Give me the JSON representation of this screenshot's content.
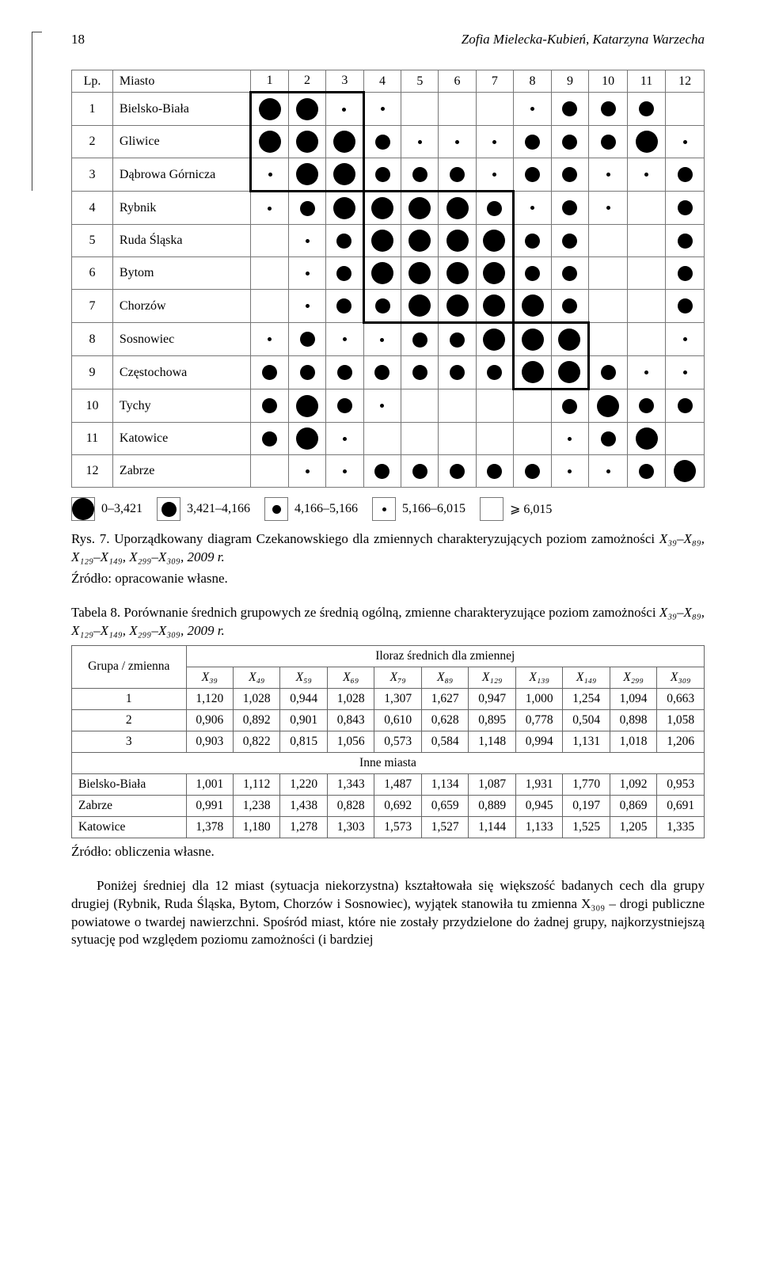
{
  "page_number": "18",
  "authors": "Zofia Mielecka-Kubień, Katarzyna Warzecha",
  "czek": {
    "lp_label": "Lp.",
    "miasto_label": "Miasto",
    "col_nums": [
      "1",
      "2",
      "3",
      "4",
      "5",
      "6",
      "7",
      "8",
      "9",
      "10",
      "11",
      "12"
    ],
    "rows": [
      {
        "n": "1",
        "city": "Bielsko-Biała",
        "cells": [
          1,
          1,
          4,
          4,
          0,
          0,
          0,
          4,
          2,
          2,
          2,
          0
        ]
      },
      {
        "n": "2",
        "city": "Gliwice",
        "cells": [
          1,
          1,
          1,
          2,
          4,
          4,
          4,
          2,
          2,
          2,
          1,
          4
        ]
      },
      {
        "n": "3",
        "city": "Dąbrowa Górnicza",
        "cells": [
          4,
          1,
          1,
          2,
          2,
          2,
          4,
          2,
          2,
          4,
          4,
          2
        ]
      },
      {
        "n": "4",
        "city": "Rybnik",
        "cells": [
          4,
          2,
          1,
          1,
          1,
          1,
          2,
          4,
          2,
          4,
          0,
          2
        ]
      },
      {
        "n": "5",
        "city": "Ruda Śląska",
        "cells": [
          0,
          4,
          2,
          1,
          1,
          1,
          1,
          2,
          2,
          0,
          0,
          2
        ]
      },
      {
        "n": "6",
        "city": "Bytom",
        "cells": [
          0,
          4,
          2,
          1,
          1,
          1,
          1,
          2,
          2,
          0,
          0,
          2
        ]
      },
      {
        "n": "7",
        "city": "Chorzów",
        "cells": [
          0,
          4,
          2,
          2,
          1,
          1,
          1,
          1,
          2,
          0,
          0,
          2
        ]
      },
      {
        "n": "8",
        "city": "Sosnowiec",
        "cells": [
          4,
          2,
          4,
          4,
          2,
          2,
          1,
          1,
          1,
          0,
          0,
          4
        ]
      },
      {
        "n": "9",
        "city": "Częstochowa",
        "cells": [
          2,
          2,
          2,
          2,
          2,
          2,
          2,
          1,
          1,
          2,
          4,
          4
        ]
      },
      {
        "n": "10",
        "city": "Tychy",
        "cells": [
          2,
          1,
          2,
          4,
          0,
          0,
          0,
          0,
          2,
          1,
          2,
          2
        ]
      },
      {
        "n": "11",
        "city": "Katowice",
        "cells": [
          2,
          1,
          4,
          0,
          0,
          0,
          0,
          0,
          4,
          2,
          1,
          0
        ]
      },
      {
        "n": "12",
        "city": "Zabrze",
        "cells": [
          0,
          4,
          4,
          2,
          2,
          2,
          2,
          2,
          4,
          4,
          2,
          1
        ]
      }
    ],
    "groups": [
      {
        "r0": 1,
        "r1": 3,
        "c0": 1,
        "c1": 3
      },
      {
        "r0": 4,
        "r1": 7,
        "c0": 4,
        "c1": 7
      },
      {
        "r0": 8,
        "r1": 9,
        "c0": 8,
        "c1": 9
      }
    ],
    "legend": [
      {
        "size": 1,
        "label": "0–3,421"
      },
      {
        "size": 2,
        "label": "3,421–4,166"
      },
      {
        "size": 3,
        "label": "4,166–5,166"
      },
      {
        "size": 4,
        "label": "5,166–6,015"
      },
      {
        "size": 0,
        "label": "⩾ 6,015"
      }
    ]
  },
  "fig_caption_a": "Rys. 7. Uporządkowany diagram Czekanowskiego dla zmiennych charakteryzujących poziom zamożności ",
  "fig_caption_vars": "X₃₉–X₈₉, X₁₂₉–X₁₄₉, X₂₉₉–X₃₀₉, 2009 r.",
  "fig_source": "Źródło: opracowanie własne.",
  "table_caption_a": "Tabela 8. Porównanie średnich grupowych ze średnią ogólną, zmienne charakteryzujące poziom zamożności ",
  "table": {
    "group_header": "Grupa / zmienna",
    "ratio_header": "Iloraz średnich dla zmiennej",
    "inne_header": "Inne miasta",
    "vars": [
      "X₃₉",
      "X₄₉",
      "X₅₉",
      "X₆₉",
      "X₇₉",
      "X₈₉",
      "X₁₂₉",
      "X₁₃₉",
      "X₁₄₉",
      "X₂₉₉",
      "X₃₀₉"
    ],
    "rows": [
      {
        "label": "1",
        "v": [
          "1,120",
          "1,028",
          "0,944",
          "1,028",
          "1,307",
          "1,627",
          "0,947",
          "1,000",
          "1,254",
          "1,094",
          "0,663"
        ]
      },
      {
        "label": "2",
        "v": [
          "0,906",
          "0,892",
          "0,901",
          "0,843",
          "0,610",
          "0,628",
          "0,895",
          "0,778",
          "0,504",
          "0,898",
          "1,058"
        ]
      },
      {
        "label": "3",
        "v": [
          "0,903",
          "0,822",
          "0,815",
          "1,056",
          "0,573",
          "0,584",
          "1,148",
          "0,994",
          "1,131",
          "1,018",
          "1,206"
        ]
      }
    ],
    "inne_rows": [
      {
        "label": "Bielsko-Biała",
        "v": [
          "1,001",
          "1,112",
          "1,220",
          "1,343",
          "1,487",
          "1,134",
          "1,087",
          "1,931",
          "1,770",
          "1,092",
          "0,953"
        ]
      },
      {
        "label": "Zabrze",
        "v": [
          "0,991",
          "1,238",
          "1,438",
          "0,828",
          "0,692",
          "0,659",
          "0,889",
          "0,945",
          "0,197",
          "0,869",
          "0,691"
        ]
      },
      {
        "label": "Katowice",
        "v": [
          "1,378",
          "1,180",
          "1,278",
          "1,303",
          "1,573",
          "1,527",
          "1,144",
          "1,133",
          "1,525",
          "1,205",
          "1,335"
        ]
      }
    ]
  },
  "table_source": "Źródło: obliczenia własne.",
  "body_para": "Poniżej średniej dla 12 miast (sytuacja niekorzystna) kształtowała się większość badanych cech dla grupy drugiej (Rybnik, Ruda Śląska, Bytom, Chorzów i Sosnowiec), wyjątek stanowiła tu zmienna X₃₀₉ – drogi publiczne powiatowe o twardej nawierzchni. Spośród miast, które nie zostały przydzielone do żadnej grupy, najkorzystniejszą sytuację pod względem poziomu zamożności (i bardziej"
}
